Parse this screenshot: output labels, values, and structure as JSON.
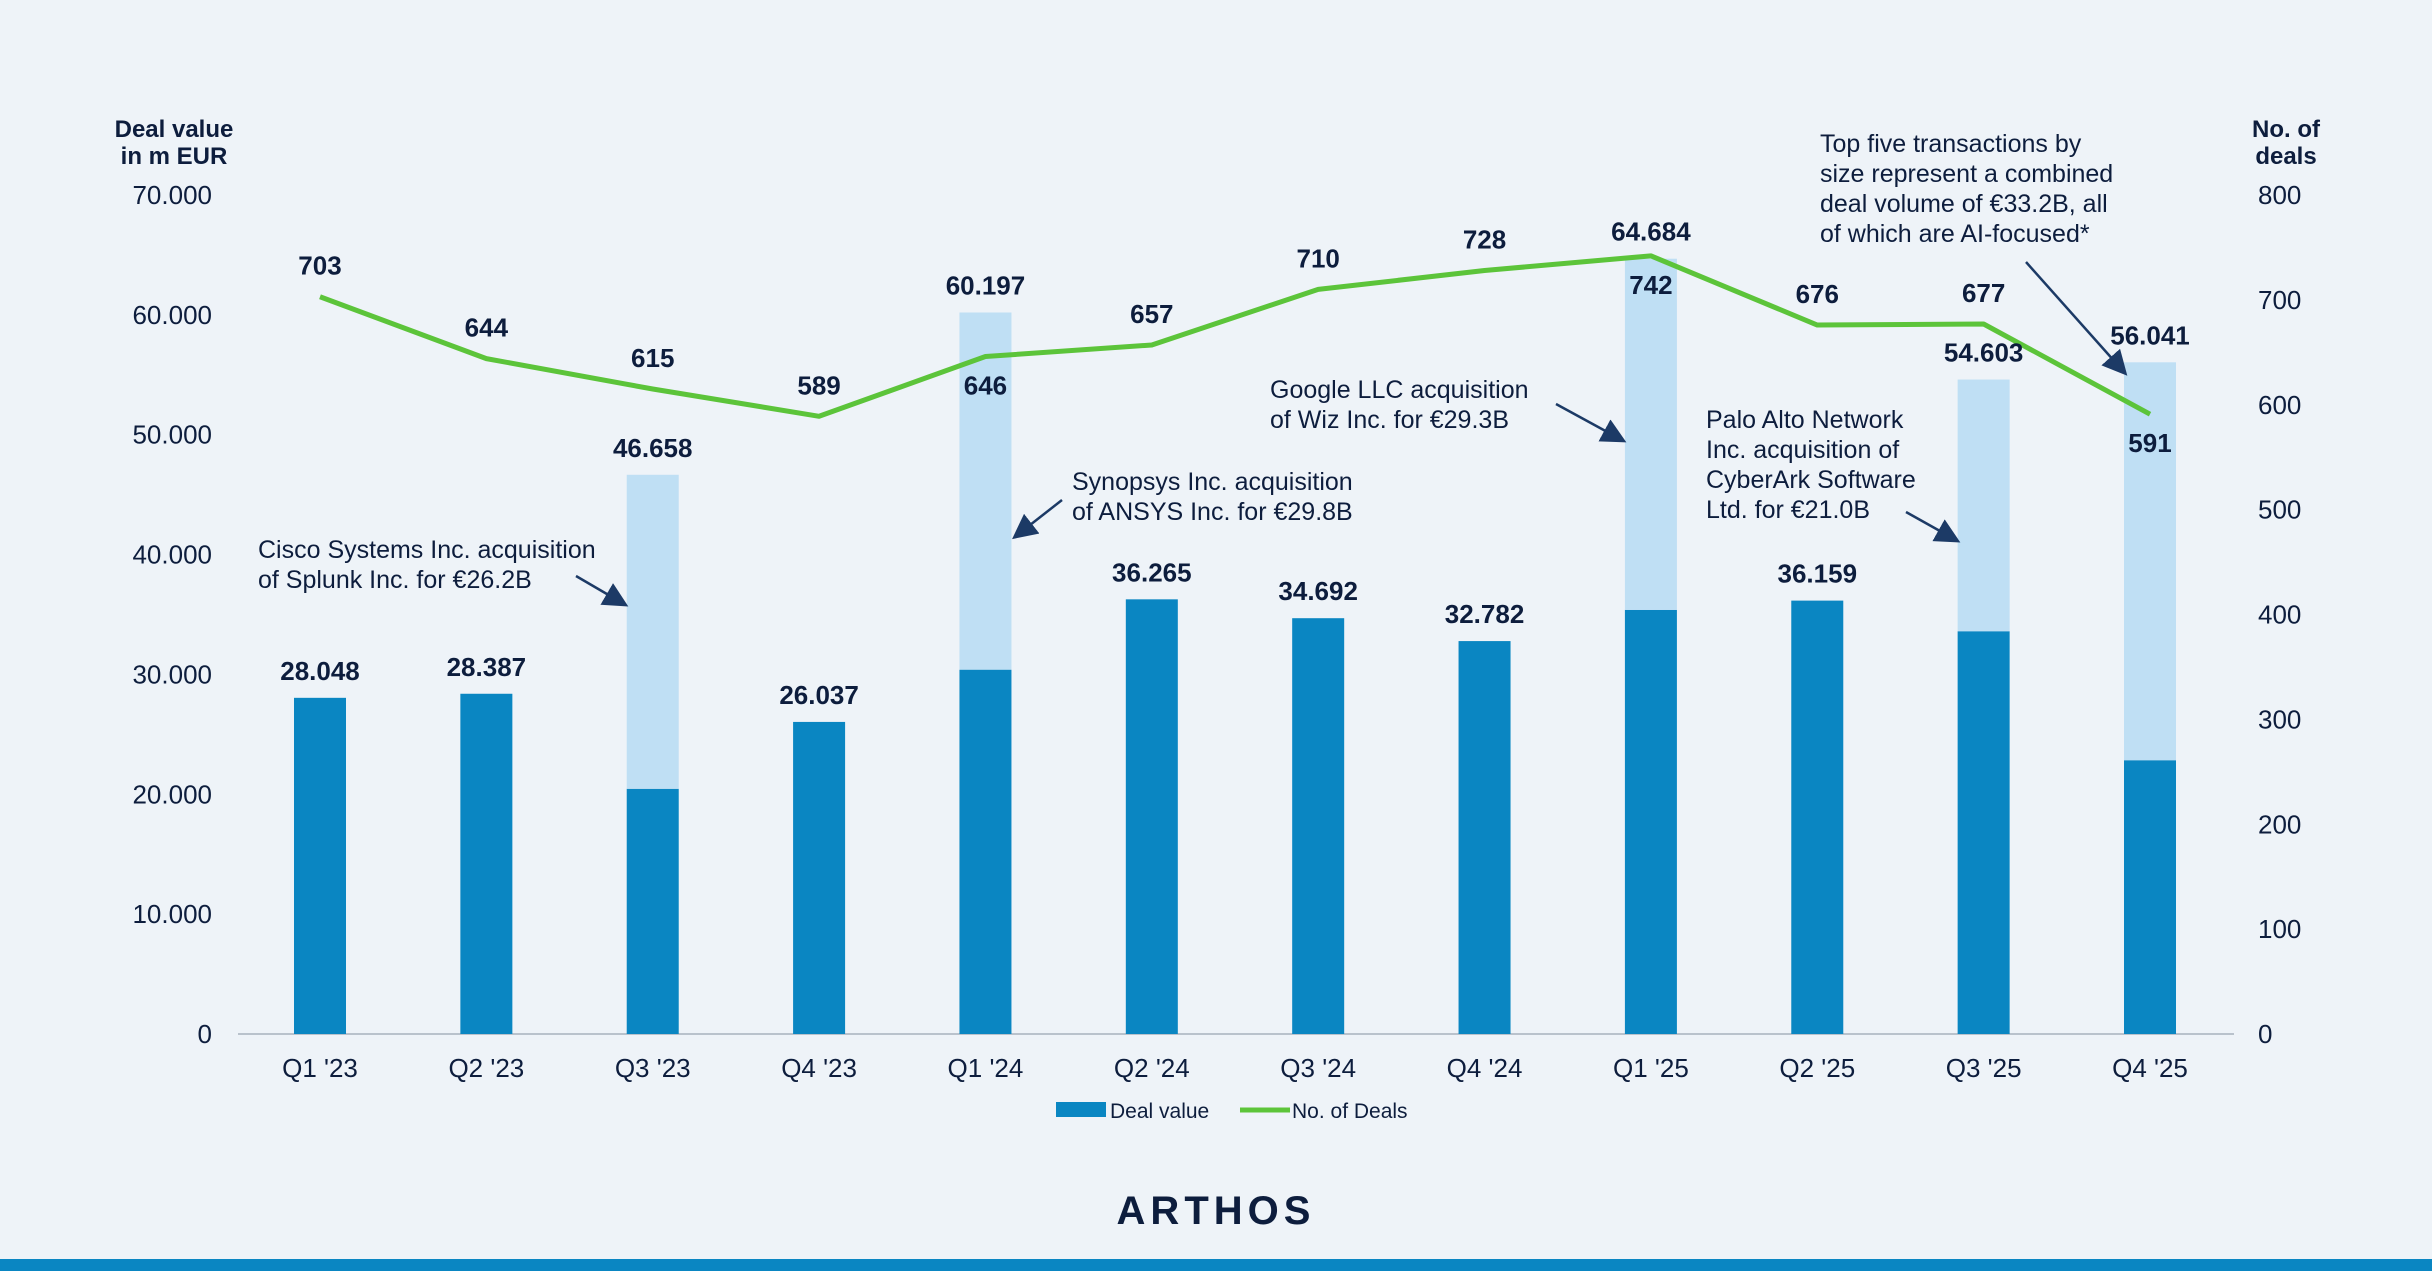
{
  "chart_data": {
    "type": "bar",
    "categories": [
      "Q1 '23",
      "Q2 '23",
      "Q3 '23",
      "Q4 '23",
      "Q1 '24",
      "Q2 '24",
      "Q3 '24",
      "Q4 '24",
      "Q1 '25",
      "Q2 '25",
      "Q3 '25",
      "Q4 '25"
    ],
    "series": [
      {
        "name": "Deal value",
        "type": "stacked-bar",
        "axis": "left",
        "totals": [
          28048,
          28387,
          46658,
          26037,
          60197,
          36265,
          34692,
          32782,
          64684,
          36159,
          54603,
          56041
        ],
        "total_labels": [
          "28.048",
          "28.387",
          "46.658",
          "26.037",
          "60.197",
          "36.265",
          "34.692",
          "32.782",
          "64.684",
          "36.159",
          "54.603",
          "56.041"
        ],
        "highlight_values": [
          0,
          0,
          26200,
          0,
          29800,
          0,
          0,
          0,
          29300,
          0,
          21000,
          33200
        ]
      },
      {
        "name": "No. of Deals",
        "type": "line",
        "axis": "right",
        "values": [
          703,
          644,
          615,
          589,
          646,
          657,
          710,
          728,
          742,
          676,
          677,
          591
        ],
        "labels": [
          "703",
          "644",
          "615",
          "589",
          "646",
          "657",
          "710",
          "728",
          "742",
          "676",
          "677",
          "591"
        ]
      }
    ],
    "y_left": {
      "label": [
        "Deal value",
        "in m EUR"
      ],
      "range": [
        0,
        70000
      ],
      "ticks": [
        0,
        10000,
        20000,
        30000,
        40000,
        50000,
        60000,
        70000
      ],
      "tick_labels": [
        "0",
        "10.000",
        "20.000",
        "30.000",
        "40.000",
        "50.000",
        "60.000",
        "70.000"
      ]
    },
    "y_right": {
      "label": [
        "No. of",
        "deals"
      ],
      "range": [
        0,
        800
      ],
      "ticks": [
        0,
        100,
        200,
        300,
        400,
        500,
        600,
        700,
        800
      ],
      "tick_labels": [
        "0",
        "100",
        "200",
        "300",
        "400",
        "500",
        "600",
        "700",
        "800"
      ]
    },
    "grid": false,
    "legend_position": "bottom-center",
    "annotations": [
      {
        "target_index": 2,
        "lines": [
          "Cisco Systems Inc. acquisition",
          "of Splunk Inc. for €26.2B"
        ]
      },
      {
        "target_index": 4,
        "lines": [
          "Synopsys Inc. acquisition",
          "of ANSYS Inc. for €29.8B"
        ]
      },
      {
        "target_index": 8,
        "lines": [
          "Google LLC acquisition",
          "of Wiz Inc. for €29.3B"
        ]
      },
      {
        "target_index": 10,
        "lines": [
          "Palo Alto Network",
          "Inc. acquisition of",
          "CyberArk Software",
          "Ltd. for €21.0B"
        ]
      },
      {
        "target_index": 11,
        "lines": [
          "Top five transactions by",
          "size represent a combined",
          "deal volume of €33.2B, all",
          "of which are AI-focused*"
        ]
      }
    ]
  },
  "branding": {
    "logo_text": "ARTHOS"
  },
  "colors": {
    "background": "#eef3f8",
    "bar_base": "#0a86c2",
    "bar_highlight": "#bfdff4",
    "line": "#5cc43a",
    "text_dark": "#0d1d3d",
    "axis": "#b9c2cc",
    "bottom_bar": "#0a86c2"
  }
}
